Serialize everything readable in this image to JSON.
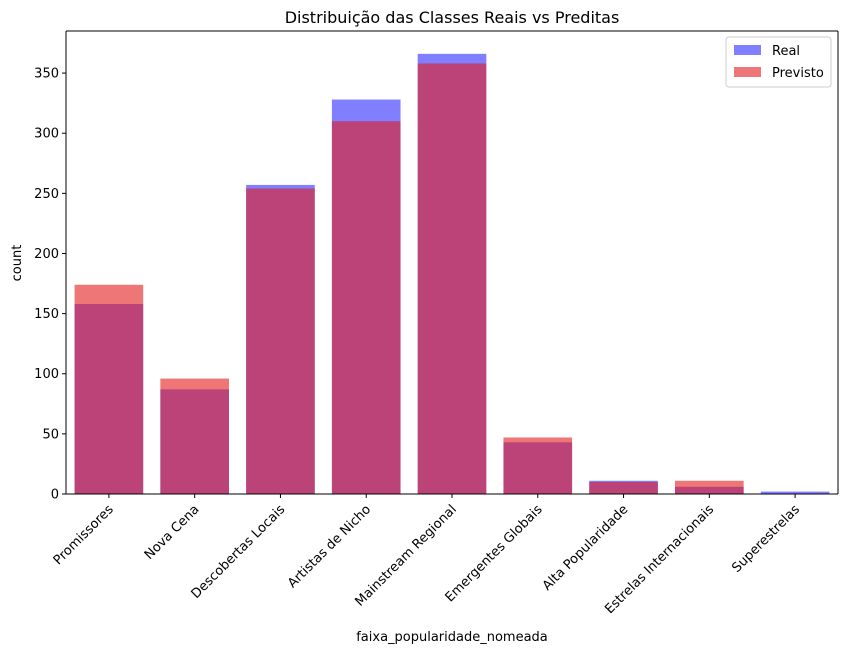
{
  "chart_data": {
    "type": "bar",
    "title": "Distribuição das Classes Reais vs Preditas",
    "xlabel": "faixa_popularidade_nomeada",
    "ylabel": "count",
    "categories": [
      "Promissores",
      "Nova Cena",
      "Descobertas Locais",
      "Artistas de Nicho",
      "Mainstream Regional",
      "Emergentes Globais",
      "Alta Popularidade",
      "Estrelas Internacionais",
      "Superestrelas"
    ],
    "series": [
      {
        "name": "Real",
        "color": "#0000ff",
        "opacity": 0.5,
        "values": [
          158,
          87,
          257,
          328,
          366,
          43,
          11,
          6,
          2
        ]
      },
      {
        "name": "Previsto",
        "color": "#e31a1c",
        "opacity": 0.6,
        "values": [
          174,
          96,
          254,
          310,
          358,
          47,
          10,
          11,
          0
        ]
      }
    ],
    "ylim": [
      0,
      385
    ],
    "yticks": [
      0,
      50,
      100,
      150,
      200,
      250,
      300,
      350
    ],
    "legend_position": "top-right",
    "grid": false
  }
}
